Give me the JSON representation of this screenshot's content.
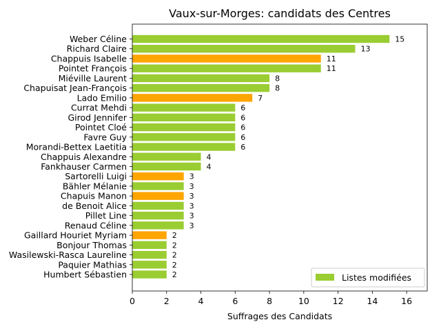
{
  "chart_data": {
    "type": "bar",
    "orientation": "horizontal",
    "title": "Vaux-sur-Morges: candidats des Centres",
    "xlabel": "Suffrages des Candidats",
    "ylabel": "",
    "xlim": [
      0,
      17.2
    ],
    "xticks": [
      0,
      2,
      4,
      6,
      8,
      10,
      12,
      14,
      16
    ],
    "grid": false,
    "legend": {
      "position": "bottom-right",
      "entries": [
        "Listes modifiées"
      ]
    },
    "colors": {
      "default": "#9acd32",
      "highlight": "#ffa500"
    },
    "categories": [
      "Weber Céline",
      "Richard Claire",
      "Chappuis Isabelle",
      "Pointet François",
      "Miéville Laurent",
      "Chapuisat Jean-François",
      "Lado Emilio",
      "Currat Mehdi",
      "Girod Jennifer",
      "Pointet Cloé",
      "Favre Guy",
      "Morandi-Bettex Laetitia",
      "Chappuis Alexandre",
      "Fankhauser Carmen",
      "Sartorelli Luigi",
      "Bähler Mélanie",
      "Chapuis Manon",
      "de Benoit Alice",
      "Pillet Line",
      "Renaud Céline",
      "Gaillard Houriet Myriam",
      "Bonjour Thomas",
      "Wasilewski-Rasca Laureline",
      "Paquier Mathias",
      "Humbert Sébastien"
    ],
    "values": [
      15,
      13,
      11,
      11,
      8,
      8,
      7,
      6,
      6,
      6,
      6,
      6,
      4,
      4,
      3,
      3,
      3,
      3,
      3,
      3,
      2,
      2,
      2,
      2,
      2
    ],
    "highlighted": [
      false,
      false,
      true,
      false,
      false,
      false,
      true,
      false,
      false,
      false,
      false,
      false,
      false,
      false,
      true,
      false,
      true,
      false,
      false,
      false,
      true,
      false,
      false,
      false,
      false
    ],
    "series": [
      {
        "name": "Listes modifiées"
      }
    ]
  }
}
